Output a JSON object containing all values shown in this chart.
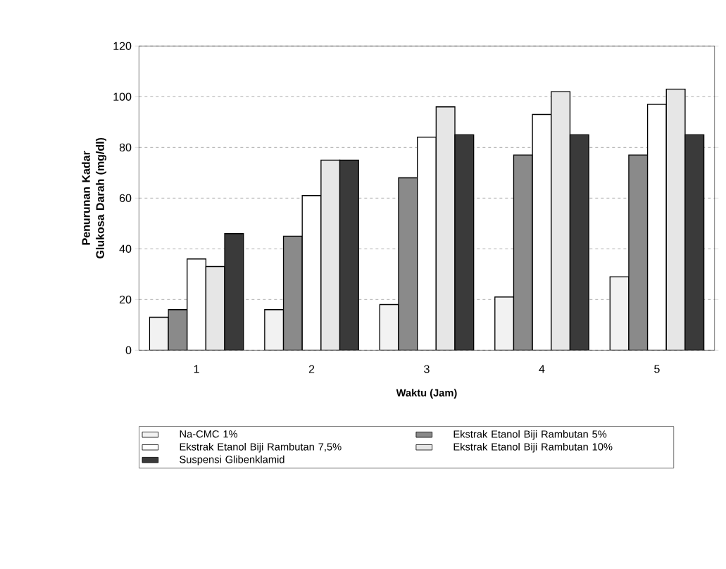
{
  "chart_data": {
    "type": "bar",
    "xlabel": "Waktu (Jam)",
    "ylabel": "Penurunan Kadar Glukosa Darah (mg/dl)",
    "categories": [
      "1",
      "2",
      "3",
      "4",
      "5"
    ],
    "series": [
      {
        "name": "Na-CMC 1%",
        "color": "#f2f2f2",
        "values": [
          13,
          16,
          18,
          21,
          29
        ]
      },
      {
        "name": "Ekstrak Etanol Biji Rambutan 5%",
        "color": "#8a8a8a",
        "values": [
          16,
          45,
          68,
          77,
          77
        ]
      },
      {
        "name": "Ekstrak Etanol Biji Rambutan 7,5%",
        "color": "#ffffff",
        "values": [
          36,
          61,
          84,
          93,
          97
        ]
      },
      {
        "name": "Ekstrak Etanol Biji Rambutan 10%",
        "color": "#e6e6e6",
        "values": [
          33,
          75,
          96,
          102,
          103
        ]
      },
      {
        "name": "Suspensi Glibenklamid",
        "color": "#3a3a3a",
        "values": [
          46,
          75,
          85,
          85,
          85
        ]
      }
    ],
    "ylim": [
      0,
      120
    ],
    "yticks": [
      0,
      20,
      40,
      60,
      80,
      100,
      120
    ],
    "grid": "y",
    "legend": "bottom"
  }
}
